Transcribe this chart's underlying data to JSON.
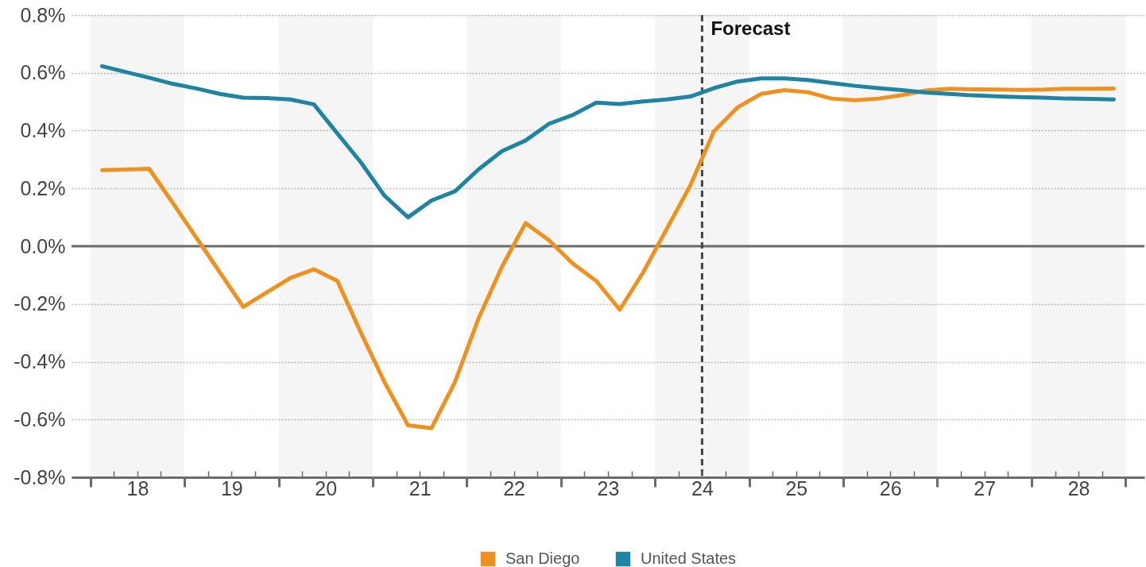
{
  "chart_data": {
    "type": "line",
    "x": [
      18.125,
      18.375,
      18.625,
      18.875,
      19.125,
      19.375,
      19.625,
      19.875,
      20.125,
      20.375,
      20.625,
      20.875,
      21.125,
      21.375,
      21.625,
      21.875,
      22.125,
      22.375,
      22.625,
      22.875,
      23.125,
      23.375,
      23.625,
      23.875,
      24.125,
      24.375,
      24.625,
      24.875,
      25.125,
      25.375,
      25.625,
      25.875,
      26.125,
      26.375,
      26.625,
      26.875,
      27.125,
      27.375,
      27.625,
      27.875,
      28.125,
      28.375,
      28.625,
      28.875
    ],
    "series": [
      {
        "name": "San Diego",
        "color": "#f0901f",
        "values": [
          0.263,
          0.265,
          0.268,
          0.15,
          0.03,
          -0.09,
          -0.21,
          -0.16,
          -0.11,
          -0.08,
          -0.12,
          -0.3,
          -0.47,
          -0.62,
          -0.63,
          -0.47,
          -0.25,
          -0.07,
          0.08,
          0.02,
          -0.06,
          -0.12,
          -0.22,
          -0.09,
          0.06,
          0.21,
          0.397,
          0.48,
          0.527,
          0.54,
          0.533,
          0.511,
          0.505,
          0.511,
          0.523,
          0.539,
          0.545,
          0.543,
          0.542,
          0.541,
          0.542,
          0.545,
          0.545,
          0.546
        ]
      },
      {
        "name": "United States",
        "color": "#1f83a3",
        "values": [
          0.623,
          0.603,
          0.583,
          0.562,
          0.546,
          0.527,
          0.514,
          0.513,
          0.508,
          0.491,
          0.39,
          0.29,
          0.175,
          0.1,
          0.158,
          0.19,
          0.266,
          0.329,
          0.366,
          0.424,
          0.454,
          0.497,
          0.492,
          0.501,
          0.508,
          0.518,
          0.547,
          0.57,
          0.581,
          0.581,
          0.575,
          0.565,
          0.555,
          0.547,
          0.54,
          0.532,
          0.527,
          0.522,
          0.519,
          0.516,
          0.514,
          0.511,
          0.51,
          0.508
        ]
      }
    ],
    "xlim": [
      17.8,
      29.2
    ],
    "xticks": [
      {
        "value": 18,
        "label": null
      },
      {
        "value": 18.25,
        "label": null
      },
      {
        "value": 18.5,
        "label": "18"
      },
      {
        "value": 18.75,
        "label": null
      },
      {
        "value": 19,
        "label": null
      },
      {
        "value": 19.25,
        "label": null
      },
      {
        "value": 19.5,
        "label": "19"
      },
      {
        "value": 19.75,
        "label": null
      },
      {
        "value": 20,
        "label": null
      },
      {
        "value": 20.25,
        "label": null
      },
      {
        "value": 20.5,
        "label": "20"
      },
      {
        "value": 20.75,
        "label": null
      },
      {
        "value": 21,
        "label": null
      },
      {
        "value": 21.25,
        "label": null
      },
      {
        "value": 21.5,
        "label": "21"
      },
      {
        "value": 21.75,
        "label": null
      },
      {
        "value": 22,
        "label": null
      },
      {
        "value": 22.25,
        "label": null
      },
      {
        "value": 22.5,
        "label": "22"
      },
      {
        "value": 22.75,
        "label": null
      },
      {
        "value": 23,
        "label": null
      },
      {
        "value": 23.25,
        "label": null
      },
      {
        "value": 23.5,
        "label": "23"
      },
      {
        "value": 23.75,
        "label": null
      },
      {
        "value": 24,
        "label": null
      },
      {
        "value": 24.25,
        "label": null
      },
      {
        "value": 24.5,
        "label": "24"
      },
      {
        "value": 24.75,
        "label": null
      },
      {
        "value": 25,
        "label": null
      },
      {
        "value": 25.25,
        "label": null
      },
      {
        "value": 25.5,
        "label": "25"
      },
      {
        "value": 25.75,
        "label": null
      },
      {
        "value": 26,
        "label": null
      },
      {
        "value": 26.25,
        "label": null
      },
      {
        "value": 26.5,
        "label": "26"
      },
      {
        "value": 26.75,
        "label": null
      },
      {
        "value": 27,
        "label": null
      },
      {
        "value": 27.25,
        "label": null
      },
      {
        "value": 27.5,
        "label": "27"
      },
      {
        "value": 27.75,
        "label": null
      },
      {
        "value": 28,
        "label": null
      },
      {
        "value": 28.25,
        "label": null
      },
      {
        "value": 28.5,
        "label": "28"
      },
      {
        "value": 28.75,
        "label": null
      },
      {
        "value": 29,
        "label": null
      }
    ],
    "ylim": [
      -0.8,
      0.8
    ],
    "yticks": [
      {
        "value": -0.8,
        "label": "-0.8%"
      },
      {
        "value": -0.6,
        "label": "-0.6%"
      },
      {
        "value": -0.4,
        "label": "-0.4%"
      },
      {
        "value": -0.2,
        "label": "-0.2%"
      },
      {
        "value": 0,
        "label": "0.0%"
      },
      {
        "value": 0.2,
        "label": "0.2%"
      },
      {
        "value": 0.4,
        "label": "0.4%"
      },
      {
        "value": 0.6,
        "label": "0.6%"
      },
      {
        "value": 0.8,
        "label": "0.8%"
      }
    ],
    "grid": "y",
    "legend": "bottom",
    "bands": [
      {
        "axis": "x",
        "from": 18,
        "to": 19,
        "color": "#f5f5f5"
      },
      {
        "axis": "x",
        "from": 20,
        "to": 21,
        "color": "#f5f5f5"
      },
      {
        "axis": "x",
        "from": 22,
        "to": 23,
        "color": "#f5f5f5"
      },
      {
        "axis": "x",
        "from": 24,
        "to": 25,
        "color": "#f5f5f5"
      },
      {
        "axis": "x",
        "from": 26,
        "to": 27,
        "color": "#f5f5f5"
      },
      {
        "axis": "x",
        "from": 28,
        "to": 29,
        "color": "#f5f5f5"
      }
    ],
    "ref_lines": [
      {
        "axis": "y",
        "value": 0,
        "color": "#6b6b6b"
      },
      {
        "axis": "x",
        "value": 24.5,
        "label": "Forecast",
        "color": "#444444",
        "line_style": "dashed"
      }
    ]
  }
}
